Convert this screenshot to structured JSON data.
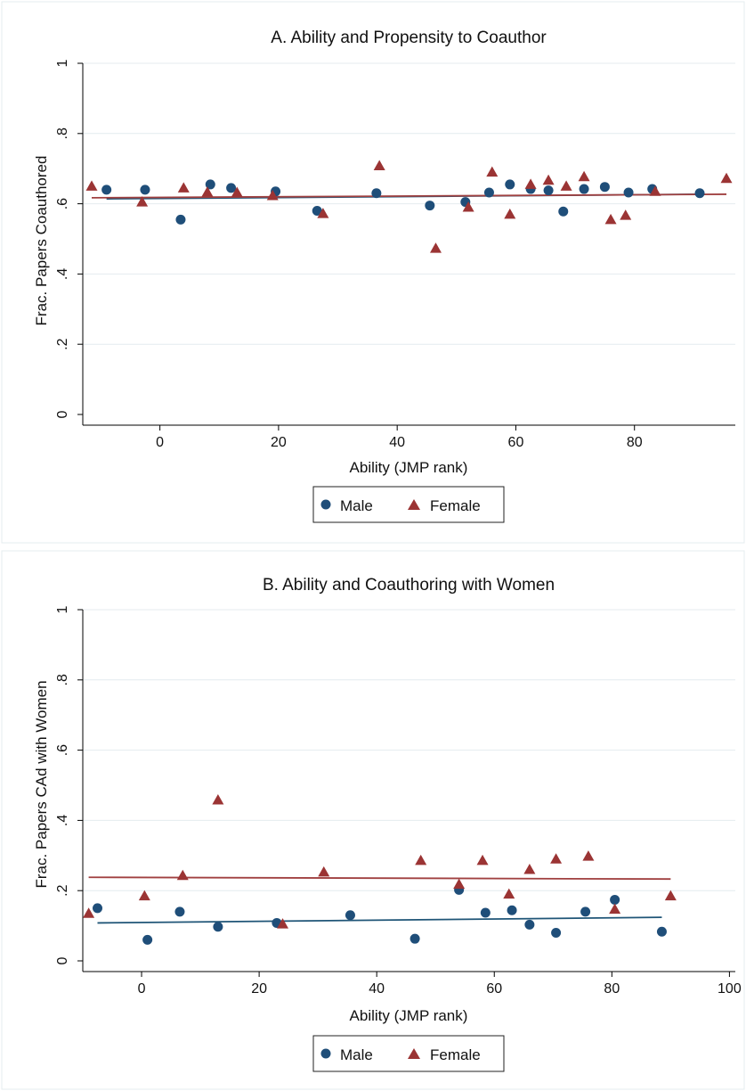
{
  "colors": {
    "male": "#1f4e79",
    "female": "#9b3434",
    "male_fit": "#1f5577",
    "female_fit": "#a04040",
    "grid": "#e4ebef",
    "axis": "#000000",
    "panel_border": "#e6ecef"
  },
  "chart_data": [
    {
      "type": "scatter",
      "title": "A. Ability and Propensity to Coauthor",
      "xlabel": "Ability (JMP rank)",
      "ylabel": "Frac. Papers Coauthored",
      "xlim": [
        -13,
        97
      ],
      "ylim": [
        0,
        1
      ],
      "xticks": [
        0,
        20,
        40,
        60,
        80
      ],
      "xtick_labels": [
        "0",
        "20",
        "40",
        "60",
        "80"
      ],
      "yticks": [
        0,
        0.2,
        0.4,
        0.6,
        0.8,
        1
      ],
      "ytick_labels": [
        "0",
        ".2",
        ".4",
        ".6",
        ".8",
        "1"
      ],
      "grid": true,
      "legend": {
        "position": "bottom",
        "entries": [
          "Male",
          "Female"
        ]
      },
      "series": [
        {
          "name": "Male",
          "marker": "circle",
          "x": [
            -9,
            -2.5,
            3.5,
            8.5,
            12,
            19.5,
            26.5,
            36.5,
            45.5,
            51.5,
            55.5,
            59,
            62.5,
            65.5,
            68,
            71.5,
            75,
            79,
            83,
            91
          ],
          "y": [
            0.64,
            0.64,
            0.555,
            0.655,
            0.645,
            0.635,
            0.58,
            0.63,
            0.595,
            0.605,
            0.632,
            0.655,
            0.642,
            0.638,
            0.578,
            0.642,
            0.648,
            0.632,
            0.642,
            0.63
          ]
        },
        {
          "name": "Female",
          "marker": "triangle",
          "x": [
            -11.5,
            -3,
            4,
            8,
            13,
            19,
            27.5,
            37,
            46.5,
            52,
            56,
            59,
            62.5,
            65.5,
            68.5,
            71.5,
            76,
            78.5,
            83.5,
            95.5
          ],
          "y": [
            0.65,
            0.605,
            0.645,
            0.633,
            0.632,
            0.623,
            0.572,
            0.708,
            0.473,
            0.59,
            0.69,
            0.57,
            0.655,
            0.667,
            0.65,
            0.677,
            0.555,
            0.567,
            0.635,
            0.672
          ]
        }
      ],
      "fit_lines": [
        {
          "series": "Male",
          "x": [
            -9,
            91
          ],
          "y": [
            0.614,
            0.627
          ]
        },
        {
          "series": "Female",
          "x": [
            -11.5,
            95.5
          ],
          "y": [
            0.617,
            0.627
          ]
        }
      ]
    },
    {
      "type": "scatter",
      "title": "B. Ability and Coauthoring with Women",
      "xlabel": "Ability (JMP rank)",
      "ylabel": "Frac. Papers CAd with Women",
      "xlim": [
        -10,
        101
      ],
      "ylim": [
        0,
        1
      ],
      "xticks": [
        0,
        20,
        40,
        60,
        80,
        100
      ],
      "xtick_labels": [
        "0",
        "20",
        "40",
        "60",
        "80",
        "100"
      ],
      "yticks": [
        0,
        0.2,
        0.4,
        0.6,
        0.8,
        1
      ],
      "ytick_labels": [
        "0",
        ".2",
        ".4",
        ".6",
        ".8",
        "1"
      ],
      "grid": true,
      "legend": {
        "position": "bottom",
        "entries": [
          "Male",
          "Female"
        ]
      },
      "series": [
        {
          "name": "Male",
          "marker": "circle",
          "x": [
            -7.5,
            1,
            6.5,
            13,
            23,
            35.5,
            46.5,
            54,
            58.5,
            63,
            66,
            70.5,
            75.5,
            80.5,
            88.5
          ],
          "y": [
            0.15,
            0.06,
            0.14,
            0.097,
            0.108,
            0.13,
            0.063,
            0.202,
            0.137,
            0.144,
            0.103,
            0.08,
            0.14,
            0.174,
            0.083
          ]
        },
        {
          "name": "Female",
          "marker": "triangle",
          "x": [
            -9,
            0.5,
            7,
            13,
            24,
            31,
            47.5,
            54,
            58,
            62.5,
            66,
            70.5,
            76,
            80.5,
            90
          ],
          "y": [
            0.135,
            0.185,
            0.243,
            0.458,
            0.105,
            0.253,
            0.286,
            0.218,
            0.286,
            0.19,
            0.26,
            0.29,
            0.298,
            0.147,
            0.185
          ]
        }
      ],
      "fit_lines": [
        {
          "series": "Male",
          "x": [
            -7.5,
            88.5
          ],
          "y": [
            0.108,
            0.124
          ]
        },
        {
          "series": "Female",
          "x": [
            -9,
            90
          ],
          "y": [
            0.238,
            0.233
          ]
        }
      ]
    }
  ]
}
